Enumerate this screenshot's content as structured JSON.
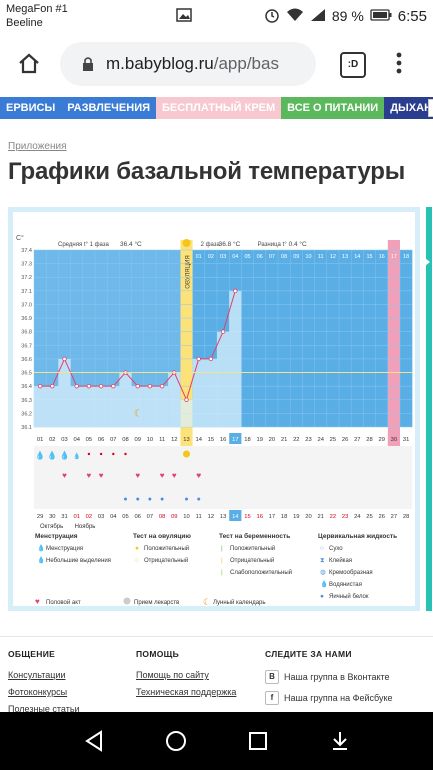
{
  "status": {
    "carrier1": "MegaFon #1",
    "carrier2": "Beeline",
    "battery": "89 %",
    "time": "6:55"
  },
  "browser": {
    "url_host": "m.babyblog.ru",
    "url_path": "/app/bas",
    "tabs_label": ":D"
  },
  "nav": [
    {
      "label": "ЕРВИСЫ",
      "color": "#3a7bd5"
    },
    {
      "label": "РАЗВЛЕЧЕНИЯ",
      "color": "#3a7bd5"
    },
    {
      "label": "БЕСПЛАТНЫЙ КРЕМ",
      "color": "#f8c8d0"
    },
    {
      "label": "ВСЕ О ПИТАНИИ",
      "color": "#5cb85c"
    },
    {
      "label": "ДЫХАНИЕ",
      "color": "#2a3d8f"
    }
  ],
  "page": {
    "breadcrumb": "Приложения",
    "title": "Графики базальной температуры"
  },
  "chart_data": {
    "type": "line",
    "unit": "C°",
    "ylim": [
      36.1,
      37.4
    ],
    "yticks": [
      "37.4",
      "37.3",
      "37.2",
      "37.1",
      "37.0",
      "36.9",
      "36.8",
      "36.7",
      "36.6",
      "36.5",
      "36.4",
      "36.3",
      "36.2",
      "36.1"
    ],
    "x": [
      1,
      2,
      3,
      4,
      5,
      6,
      7,
      8,
      9,
      10,
      11,
      12,
      13,
      14,
      15,
      16,
      17
    ],
    "y": [
      36.4,
      36.4,
      36.6,
      36.4,
      36.4,
      36.4,
      36.4,
      36.5,
      36.4,
      36.4,
      36.4,
      36.5,
      36.3,
      36.6,
      36.6,
      36.8,
      37.1
    ],
    "avg_phase1_label": "Средняя t° 1 фаза",
    "avg_phase1": "36.4 °C",
    "phase2_label": "2 фаза",
    "phase2": "36.8 °C",
    "diff_label": "Разница t°",
    "diff": "0.4 °C",
    "ovulation_label": "ОВУЛЯЦИЯ",
    "ovulation_day": 13,
    "cycle_days": [
      "01",
      "02",
      "03",
      "04",
      "05",
      "06",
      "07",
      "08",
      "09",
      "10",
      "11",
      "12",
      "13",
      "14",
      "15",
      "16",
      "17",
      "18",
      "19",
      "20",
      "21",
      "22",
      "23",
      "24",
      "25",
      "26",
      "27",
      "28",
      "29",
      "30",
      "31"
    ],
    "phase2_days": [
      "01",
      "02",
      "03",
      "04",
      "05",
      "06",
      "07",
      "08",
      "09",
      "10",
      "11",
      "12",
      "13",
      "14",
      "15",
      "16",
      "17",
      "18"
    ],
    "calendar_days": [
      "29",
      "30",
      "31",
      "01",
      "02",
      "03",
      "04",
      "05",
      "06",
      "07",
      "08",
      "09",
      "10",
      "11",
      "12",
      "13",
      "14",
      "15",
      "16",
      "17",
      "18",
      "19",
      "20",
      "21",
      "22",
      "23",
      "24",
      "25",
      "26",
      "27",
      "28"
    ],
    "month1": "Октябрь",
    "month2": "Ноябрь",
    "today_marker": "17",
    "today_calendar": "14"
  },
  "legend": {
    "col1_head": "Менструация",
    "col1": [
      "Менструация",
      "Небольшие выделения"
    ],
    "col2_head": "Тест на овуляцию",
    "col2": [
      "Положительный",
      "Отрицательный"
    ],
    "col3_head": "Тест на беременность",
    "col3": [
      "Положительный",
      "Отрицательный",
      "Слабоположительный"
    ],
    "col4_head": "Цервикальная жидкость",
    "col4": [
      "Сухо",
      "Клейкая",
      "Кремообразная",
      "Водянистая",
      "Яичный белок"
    ],
    "bottom": [
      "Половой акт",
      "Прием лекарств",
      "Лунный календарь"
    ]
  },
  "footer": {
    "col1_head": "ОБЩЕНИЕ",
    "col1": [
      "Консультации",
      "Фотоконкурсы",
      "Полезные статьи"
    ],
    "col2_head": "ПОМОЩЬ",
    "col2": [
      "Помощь по сайту",
      "Техническая поддержка"
    ],
    "col3_head": "СЛЕДИТЕ ЗА НАМИ",
    "col3": [
      "Наша группа в Вконтакте",
      "Наша группа на Фейсбуке"
    ],
    "vk": "В",
    "fb": "f"
  },
  "colors": {
    "chart_bg": "#5aaee6",
    "chart_post": "#bfe3f7",
    "ovulation": "#fde27a",
    "pink_col": "#f0a0b8",
    "line": "#e0406a"
  }
}
